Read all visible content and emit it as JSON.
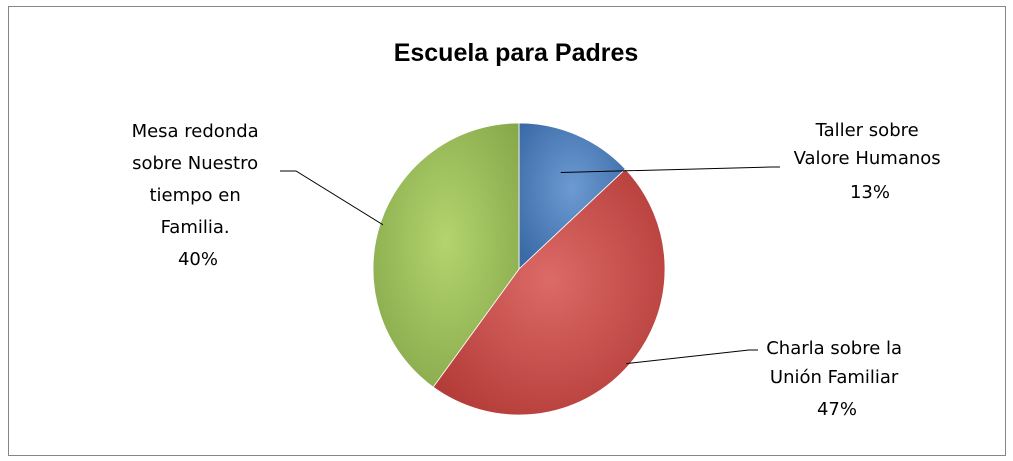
{
  "chart_data": {
    "type": "pie",
    "title": "Escuela para Padres",
    "start_angle_deg": 0,
    "direction": "clockwise",
    "slices": [
      {
        "label_lines": [
          "Taller sobre",
          "Valore Humanos"
        ],
        "percent_label": "13%",
        "value": 13,
        "color": "#4f81bd"
      },
      {
        "label_lines": [
          "Charla sobre la",
          "Unión Familiar"
        ],
        "percent_label": "47%",
        "value": 47,
        "color": "#c0504d"
      },
      {
        "label_lines": [
          "Mesa redonda",
          "sobre Nuestro",
          "tiempo en",
          "Familia."
        ],
        "percent_label": "40%",
        "value": 40,
        "color": "#9bbb59"
      }
    ],
    "legend": "none"
  }
}
